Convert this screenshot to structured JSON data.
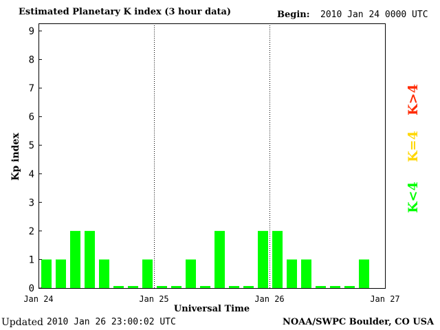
{
  "header": {
    "title": "Estimated Planetary K index (3 hour data)",
    "begin_label": "Begin:",
    "begin_value": "2010 Jan 24 0000 UTC"
  },
  "footer": {
    "updated_label": "Updated",
    "updated_value": "2010 Jan 26 23:00:02 UTC",
    "credit": "NOAA/SWPC Boulder, CO USA"
  },
  "legend": [
    {
      "label": "K<4",
      "color": "#00ff00"
    },
    {
      "label": "K=4",
      "color": "#ffd700"
    },
    {
      "label": "K>4",
      "color": "#ff2a00"
    }
  ],
  "colors": {
    "low": "#00ff00",
    "moderate": "#ffd700",
    "high": "#ff2a00"
  },
  "chart_data": {
    "type": "bar",
    "title": "Estimated Planetary K index (3 hour data)",
    "xlabel": "Universal Time",
    "ylabel": "Kp index",
    "ylim": [
      0,
      9
    ],
    "yticks": [
      0,
      1,
      2,
      3,
      4,
      5,
      6,
      7,
      8,
      9
    ],
    "xticks": [
      "Jan 24",
      "Jan 25",
      "Jan 26",
      "Jan 27"
    ],
    "bars_per_day": 8,
    "day_separators": true,
    "grid": false,
    "legend_placement": "right",
    "values": [
      1,
      1,
      2,
      2,
      1,
      0,
      0,
      1,
      0,
      0,
      1,
      0,
      2,
      0,
      0,
      2,
      2,
      1,
      1,
      0,
      0,
      0,
      1,
      null
    ]
  }
}
